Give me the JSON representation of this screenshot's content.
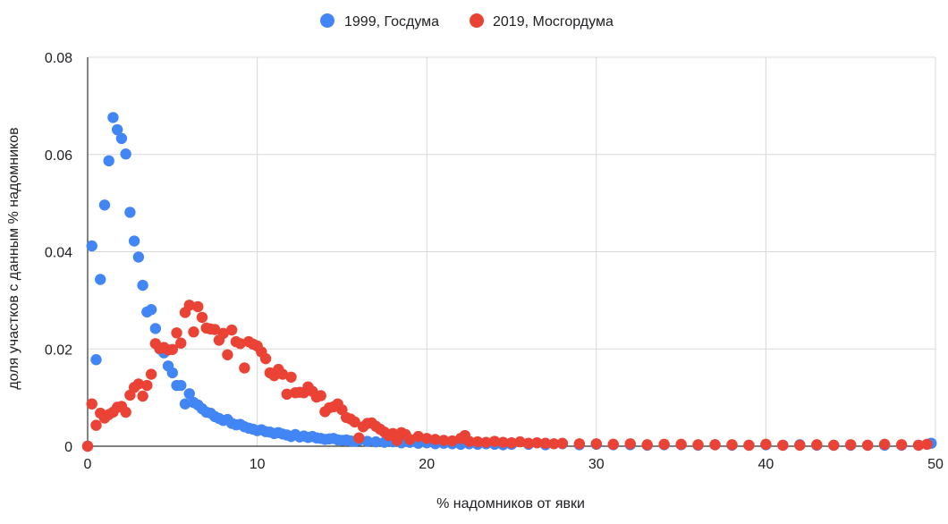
{
  "chart_data": {
    "type": "scatter",
    "title": "",
    "xlabel": "% надомников от явки",
    "ylabel": "доля участков с данным % надомников",
    "xlim": [
      0,
      50
    ],
    "ylim": [
      0,
      0.08
    ],
    "x_ticks": [
      0,
      10,
      20,
      30,
      40,
      50
    ],
    "x_tick_labels": [
      "0",
      "10",
      "20",
      "30",
      "40",
      "50"
    ],
    "y_ticks": [
      0,
      0.02,
      0.04,
      0.06,
      0.08
    ],
    "y_tick_labels": [
      "0",
      "0.02",
      "0.04",
      "0.06",
      "0.08"
    ],
    "grid": true,
    "legend_position": "top",
    "series": [
      {
        "name": "1999, Госдума",
        "color": "#4285f4",
        "points": [
          [
            0.0,
            0.0
          ],
          [
            0.25,
            0.0412
          ],
          [
            0.5,
            0.0178
          ],
          [
            0.75,
            0.0343
          ],
          [
            1.0,
            0.0496
          ],
          [
            1.25,
            0.0587
          ],
          [
            1.5,
            0.0676
          ],
          [
            1.75,
            0.0651
          ],
          [
            2.0,
            0.0633
          ],
          [
            2.25,
            0.0601
          ],
          [
            2.5,
            0.0481
          ],
          [
            2.75,
            0.0422
          ],
          [
            3.0,
            0.0389
          ],
          [
            3.25,
            0.0331
          ],
          [
            3.5,
            0.0276
          ],
          [
            3.75,
            0.0281
          ],
          [
            4.0,
            0.0242
          ],
          [
            4.25,
            0.02
          ],
          [
            4.5,
            0.0192
          ],
          [
            4.75,
            0.0165
          ],
          [
            5.0,
            0.0151
          ],
          [
            5.25,
            0.0125
          ],
          [
            5.5,
            0.0125
          ],
          [
            5.75,
            0.0087
          ],
          [
            6.0,
            0.0108
          ],
          [
            6.25,
            0.009
          ],
          [
            6.5,
            0.0085
          ],
          [
            6.75,
            0.0077
          ],
          [
            7.0,
            0.007
          ],
          [
            7.25,
            0.0068
          ],
          [
            7.5,
            0.0061
          ],
          [
            7.75,
            0.0057
          ],
          [
            8.0,
            0.0053
          ],
          [
            8.25,
            0.0055
          ],
          [
            8.5,
            0.0047
          ],
          [
            8.75,
            0.0044
          ],
          [
            9.0,
            0.0045
          ],
          [
            9.25,
            0.004
          ],
          [
            9.5,
            0.0037
          ],
          [
            9.75,
            0.0035
          ],
          [
            10.0,
            0.0032
          ],
          [
            10.25,
            0.0034
          ],
          [
            10.5,
            0.003
          ],
          [
            10.75,
            0.0029
          ],
          [
            11.0,
            0.0026
          ],
          [
            11.25,
            0.0028
          ],
          [
            11.5,
            0.0025
          ],
          [
            11.75,
            0.0023
          ],
          [
            12.0,
            0.002
          ],
          [
            12.25,
            0.0024
          ],
          [
            12.5,
            0.0019
          ],
          [
            12.75,
            0.0021
          ],
          [
            13.0,
            0.0018
          ],
          [
            13.25,
            0.002
          ],
          [
            13.5,
            0.0017
          ],
          [
            13.75,
            0.0016
          ],
          [
            14.0,
            0.0014
          ],
          [
            14.25,
            0.0015
          ],
          [
            14.5,
            0.0016
          ],
          [
            14.75,
            0.0013
          ],
          [
            15.0,
            0.0012
          ],
          [
            15.25,
            0.0013
          ],
          [
            15.5,
            0.0011
          ],
          [
            15.75,
            0.001
          ],
          [
            16.0,
            0.0012
          ],
          [
            16.5,
            0.001
          ],
          [
            17.0,
            0.0009
          ],
          [
            17.5,
            0.0008
          ],
          [
            18.0,
            0.0009
          ],
          [
            18.5,
            0.0007
          ],
          [
            19.0,
            0.0008
          ],
          [
            19.5,
            0.0006
          ],
          [
            20.0,
            0.0007
          ],
          [
            20.5,
            0.0005
          ],
          [
            21.0,
            0.0006
          ],
          [
            21.5,
            0.0005
          ],
          [
            22.0,
            0.0004
          ],
          [
            22.5,
            0.0005
          ],
          [
            23.0,
            0.0004
          ],
          [
            23.5,
            0.0005
          ],
          [
            24.0,
            0.0004
          ],
          [
            24.5,
            0.0003
          ],
          [
            25.0,
            0.0004
          ],
          [
            26.0,
            0.0004
          ],
          [
            27.0,
            0.0003
          ],
          [
            28.0,
            0.0005
          ],
          [
            29.0,
            0.0003
          ],
          [
            30.0,
            0.0004
          ],
          [
            31.0,
            0.0003
          ],
          [
            32.0,
            0.0003
          ],
          [
            33.0,
            0.0002
          ],
          [
            34.0,
            0.0003
          ],
          [
            35.0,
            0.0003
          ],
          [
            36.0,
            0.0002
          ],
          [
            37.0,
            0.0003
          ],
          [
            38.0,
            0.0002
          ],
          [
            39.0,
            0.0002
          ],
          [
            40.0,
            0.0003
          ],
          [
            41.0,
            0.0002
          ],
          [
            42.0,
            0.0003
          ],
          [
            43.0,
            0.0002
          ],
          [
            44.0,
            0.0002
          ],
          [
            45.0,
            0.0002
          ],
          [
            46.0,
            0.0002
          ],
          [
            47.0,
            0.0002
          ],
          [
            48.0,
            0.0002
          ],
          [
            49.0,
            0.0002
          ],
          [
            49.75,
            0.0006
          ]
        ]
      },
      {
        "name": "2019, Мосгордума",
        "color": "#ea4335",
        "points": [
          [
            0.0,
            0.0
          ],
          [
            0.25,
            0.0087
          ],
          [
            0.5,
            0.0043
          ],
          [
            0.75,
            0.0068
          ],
          [
            1.0,
            0.0058
          ],
          [
            1.25,
            0.0065
          ],
          [
            1.5,
            0.007
          ],
          [
            1.75,
            0.008
          ],
          [
            2.0,
            0.0082
          ],
          [
            2.25,
            0.007
          ],
          [
            2.5,
            0.0105
          ],
          [
            2.75,
            0.0121
          ],
          [
            3.0,
            0.0128
          ],
          [
            3.25,
            0.0103
          ],
          [
            3.5,
            0.0125
          ],
          [
            3.75,
            0.0148
          ],
          [
            4.0,
            0.0211
          ],
          [
            4.25,
            0.0201
          ],
          [
            4.5,
            0.0203
          ],
          [
            4.75,
            0.0198
          ],
          [
            5.0,
            0.0199
          ],
          [
            5.25,
            0.0233
          ],
          [
            5.5,
            0.0212
          ],
          [
            5.75,
            0.0275
          ],
          [
            6.0,
            0.029
          ],
          [
            6.25,
            0.0235
          ],
          [
            6.5,
            0.0287
          ],
          [
            6.75,
            0.0265
          ],
          [
            7.0,
            0.0243
          ],
          [
            7.25,
            0.0241
          ],
          [
            7.5,
            0.024
          ],
          [
            7.75,
            0.0218
          ],
          [
            8.0,
            0.0232
          ],
          [
            8.25,
            0.0188
          ],
          [
            8.5,
            0.0239
          ],
          [
            8.75,
            0.0215
          ],
          [
            9.0,
            0.0211
          ],
          [
            9.25,
            0.0161
          ],
          [
            9.5,
            0.0215
          ],
          [
            9.75,
            0.021
          ],
          [
            10.0,
            0.0206
          ],
          [
            10.25,
            0.0194
          ],
          [
            10.5,
            0.018
          ],
          [
            10.75,
            0.0151
          ],
          [
            11.0,
            0.0145
          ],
          [
            11.25,
            0.0158
          ],
          [
            11.5,
            0.0148
          ],
          [
            11.75,
            0.0107
          ],
          [
            12.0,
            0.0142
          ],
          [
            12.25,
            0.011
          ],
          [
            12.5,
            0.0111
          ],
          [
            12.75,
            0.011
          ],
          [
            13.0,
            0.0122
          ],
          [
            13.25,
            0.0113
          ],
          [
            13.5,
            0.0101
          ],
          [
            13.75,
            0.0104
          ],
          [
            14.0,
            0.0071
          ],
          [
            14.25,
            0.0079
          ],
          [
            14.5,
            0.0081
          ],
          [
            14.75,
            0.0087
          ],
          [
            15.0,
            0.0075
          ],
          [
            15.25,
            0.0059
          ],
          [
            15.5,
            0.0056
          ],
          [
            15.75,
            0.005
          ],
          [
            16.0,
            0.0017
          ],
          [
            16.25,
            0.004
          ],
          [
            16.5,
            0.0047
          ],
          [
            16.75,
            0.0048
          ],
          [
            17.0,
            0.0041
          ],
          [
            17.25,
            0.0035
          ],
          [
            17.5,
            0.0029
          ],
          [
            17.75,
            0.0022
          ],
          [
            18.0,
            0.0026
          ],
          [
            18.25,
            0.0012
          ],
          [
            18.5,
            0.0028
          ],
          [
            18.75,
            0.0024
          ],
          [
            19.0,
            0.0014
          ],
          [
            19.5,
            0.002
          ],
          [
            20.0,
            0.0016
          ],
          [
            20.5,
            0.0014
          ],
          [
            21.0,
            0.0012
          ],
          [
            21.5,
            0.0011
          ],
          [
            22.0,
            0.0016
          ],
          [
            22.25,
            0.0022
          ],
          [
            22.5,
            0.001
          ],
          [
            23.0,
            0.0009
          ],
          [
            23.5,
            0.0008
          ],
          [
            24.0,
            0.001
          ],
          [
            24.5,
            0.0008
          ],
          [
            25.0,
            0.0007
          ],
          [
            25.5,
            0.0009
          ],
          [
            26.0,
            0.0006
          ],
          [
            26.5,
            0.0007
          ],
          [
            27.0,
            0.0006
          ],
          [
            27.5,
            0.0005
          ],
          [
            28.0,
            0.0006
          ],
          [
            29.0,
            0.0005
          ],
          [
            30.0,
            0.0005
          ],
          [
            31.0,
            0.0004
          ],
          [
            32.0,
            0.0005
          ],
          [
            33.0,
            0.0003
          ],
          [
            34.0,
            0.0004
          ],
          [
            35.0,
            0.0004
          ],
          [
            36.0,
            0.0003
          ],
          [
            37.0,
            0.0003
          ],
          [
            38.0,
            0.0003
          ],
          [
            39.0,
            0.0002
          ],
          [
            40.0,
            0.0004
          ],
          [
            41.0,
            0.0002
          ],
          [
            42.0,
            0.0002
          ],
          [
            43.0,
            0.0003
          ],
          [
            44.0,
            0.0002
          ],
          [
            45.0,
            0.0003
          ],
          [
            46.0,
            0.0002
          ],
          [
            47.0,
            0.0004
          ],
          [
            48.0,
            0.0003
          ],
          [
            49.0,
            0.0002
          ],
          [
            49.5,
            0.0004
          ]
        ]
      }
    ]
  }
}
